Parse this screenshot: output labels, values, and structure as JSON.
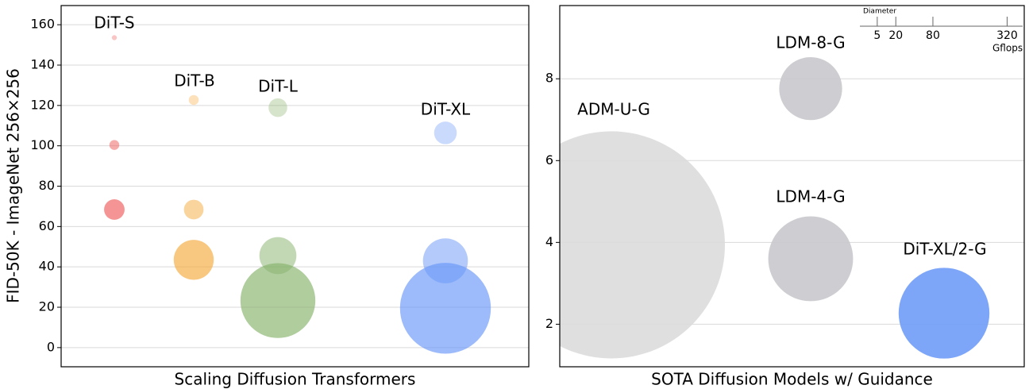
{
  "chart_data": [
    {
      "type": "bubble",
      "xlabel": "Scaling Diffusion Transformers",
      "ylabel": "FID-50K - ImageNet 256×256",
      "ylim": [
        -9.5,
        169.5
      ],
      "yticks": [
        0,
        20,
        40,
        60,
        80,
        100,
        120,
        140,
        160
      ],
      "grid": true,
      "series": [
        {
          "name": "DiT-S",
          "color": "#f05a5a",
          "values": [
            153.6,
            100.4,
            68.4
          ],
          "sizes": [
            0.36,
            1.41,
            6.06
          ]
        },
        {
          "name": "DiT-B",
          "color": "#f5a93c",
          "values": [
            122.7,
            68.4,
            43.5
          ],
          "sizes": [
            1.42,
            5.56,
            23.01
          ]
        },
        {
          "name": "DiT-L",
          "color": "#86b26a",
          "values": [
            118.9,
            45.6,
            23.3
          ],
          "sizes": [
            5.01,
            19.7,
            80.71
          ]
        },
        {
          "name": "DiT-XL",
          "color": "#6896f8",
          "values": [
            106.4,
            43.0,
            19.5
          ],
          "sizes": [
            7.39,
            29.05,
            118.64
          ]
        }
      ]
    },
    {
      "type": "bubble",
      "xlabel": "SOTA Diffusion Models w/ Guidance",
      "ylim": [
        0.96,
        9.79
      ],
      "yticks": [
        2,
        4,
        6,
        8
      ],
      "grid": true,
      "series": [
        {
          "name": "ADM-U-G",
          "color": "#dcdcdc",
          "values": [
            3.94
          ],
          "sizes": [
            742
          ]
        },
        {
          "name": "LDM-8-G",
          "color": "#c9c9cd",
          "values": [
            7.76
          ],
          "sizes": [
            57
          ]
        },
        {
          "name": "LDM-4-G",
          "color": "#c9c9cd",
          "values": [
            3.6
          ],
          "sizes": [
            103.6
          ]
        },
        {
          "name": "DiT-XL/2-G",
          "color": "#6f9cf8",
          "values": [
            2.27
          ],
          "sizes": [
            118.64
          ]
        }
      ],
      "size_legend": {
        "title": "Diameter",
        "values": [
          5,
          20,
          80,
          320
        ],
        "unit": "Gflops"
      }
    }
  ]
}
